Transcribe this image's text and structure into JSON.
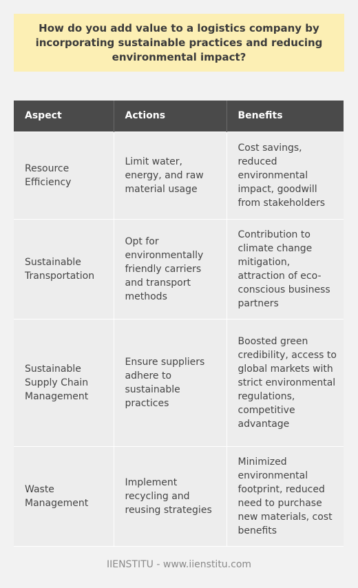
{
  "question": "How do you add value to a logistics company by incorporating sustainable practices and reducing environmental impact?",
  "table": {
    "headers": [
      "Aspect",
      "Actions",
      "Benefits"
    ],
    "rows": [
      [
        "Resource Efficiency",
        "Limit water, energy, and raw material usage",
        "Cost savings, reduced environmental impact, goodwill from stakeholders"
      ],
      [
        "Sustainable Transportation",
        "Opt for environmentally friendly carriers and transport methods",
        "Contribution to climate change mitigation, attraction of eco-conscious business partners"
      ],
      [
        "Sustainable Supply Chain Management",
        "Ensure suppliers adhere to sustainable practices",
        "Boosted green credibility, access to global markets with strict environmental regulations, competitive advantage"
      ],
      [
        "Waste Management",
        "Implement recycling and reusing strategies",
        "Minimized environmental footprint, reduced need to purchase new materials, cost benefits"
      ]
    ]
  },
  "footer": "IIENSTITU - www.iienstitu.com",
  "colors": {
    "question_bg": "#fcefb4",
    "header_bg": "#4a4a4a",
    "cell_bg": "#ededed",
    "page_bg": "#f2f2f2"
  }
}
